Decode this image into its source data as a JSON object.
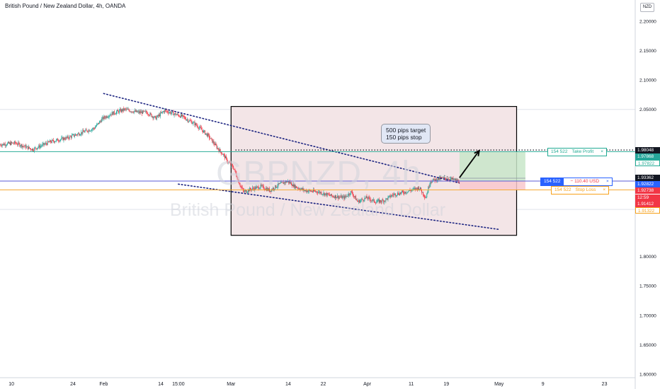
{
  "title": "British Pound / New Zealand Dollar, 4h, OANDA",
  "currency": "NZD",
  "watermark": {
    "symbol": "GBPNZD, 4h",
    "name": "British Pound / New Zealand Dollar"
  },
  "callout": {
    "line1": "500 pips target",
    "line2": "150 pips stop"
  },
  "position": {
    "take_profit": {
      "qty": "154 522",
      "label": "Take Profit",
      "close": "×",
      "price": 1.97822
    },
    "entry": {
      "qty": "154 522",
      "pnl": "− 110.40 USD",
      "close": "×",
      "price": 1.92822
    },
    "stop_loss": {
      "qty": "154 522",
      "label": "Stop Loss",
      "close": "×",
      "price": 1.91322
    }
  },
  "price_tags": [
    {
      "text": "1.98048",
      "value": 1.98048,
      "bg": "#131722",
      "fg": "#ffffff"
    },
    {
      "text": "1.97868",
      "value": 1.97868,
      "bg": "#26a69a",
      "fg": "#ffffff"
    },
    {
      "text": "1.97822",
      "value": 1.97822,
      "bg": "#ffffff",
      "fg": "#22ab94",
      "border": "#22ab94"
    },
    {
      "text": "1.93362",
      "value": 1.93362,
      "bg": "#131722",
      "fg": "#ffffff"
    },
    {
      "text": "1.92822",
      "value": 1.92822,
      "bg": "#2962ff",
      "fg": "#ffffff"
    },
    {
      "text": "1.92738",
      "value": 1.92738,
      "bg": "#f23645",
      "fg": "#ffffff"
    },
    {
      "text": "12:59",
      "value": 1.91975,
      "bg": "#f23645",
      "fg": "#ffffff"
    },
    {
      "text": "1.91412",
      "value": 1.91412,
      "bg": "#f23645",
      "fg": "#ffffff"
    },
    {
      "text": "1.91322",
      "value": 1.91322,
      "bg": "#ffffff",
      "fg": "#f7a21b",
      "border": "#f7a21b"
    }
  ],
  "colors": {
    "up": "#26a69a",
    "down": "#f23645",
    "trendline": "#1b2380",
    "box_fill": "#f3e5e7",
    "tp_zone": "#c8e6c9",
    "sl_zone": "#f8c8cc",
    "entry_line": "#5b5bd6"
  },
  "chart_data": {
    "type": "candlestick",
    "symbol": "GBPNZD",
    "timeframe": "4h",
    "y_axis": {
      "ticks": [
        2.2,
        2.15,
        2.1,
        2.05,
        1.8,
        1.75,
        1.7,
        1.65,
        1.6
      ],
      "tick_labels": [
        "2.20000",
        "2.15000",
        "2.10000",
        "2.05000",
        "1.80000",
        "1.75000",
        "1.70000",
        "1.65000",
        "1.60000"
      ],
      "ylim": [
        1.594,
        2.236
      ]
    },
    "x_axis": {
      "tick_labels": [
        "10",
        "24",
        "Feb",
        "14",
        "15:00",
        "Mar",
        "14",
        "22",
        "Apr",
        "11",
        "19",
        "May",
        "9",
        "23"
      ],
      "tick_days": [
        -21,
        -7,
        0,
        13,
        17,
        29,
        42,
        50,
        60,
        70,
        78,
        90,
        100,
        114
      ],
      "xlim": [
        -23.6,
        121
      ]
    },
    "grid_levels": [
      2.05,
      1.97822,
      1.91322,
      1.88
    ],
    "price_path": [
      {
        "day": -23.6,
        "price": 1.99
      },
      {
        "day": -20,
        "price": 1.993
      },
      {
        "day": -16,
        "price": 1.982
      },
      {
        "day": -12,
        "price": 1.995
      },
      {
        "day": -8,
        "price": 2.002
      },
      {
        "day": -4,
        "price": 2.013
      },
      {
        "day": -2,
        "price": 2.018
      },
      {
        "day": 0,
        "price": 2.035
      },
      {
        "day": 2,
        "price": 2.043
      },
      {
        "day": 5,
        "price": 2.05
      },
      {
        "day": 8,
        "price": 2.045
      },
      {
        "day": 10,
        "price": 2.045
      },
      {
        "day": 12,
        "price": 2.035
      },
      {
        "day": 14,
        "price": 2.048
      },
      {
        "day": 16,
        "price": 2.043
      },
      {
        "day": 18,
        "price": 2.038
      },
      {
        "day": 21,
        "price": 2.025
      },
      {
        "day": 24,
        "price": 2.005
      },
      {
        "day": 26,
        "price": 1.985
      },
      {
        "day": 27.5,
        "price": 1.972
      },
      {
        "day": 28.5,
        "price": 1.96
      },
      {
        "day": 29.8,
        "price": 1.95
      },
      {
        "day": 31,
        "price": 1.925
      },
      {
        "day": 32,
        "price": 1.91
      },
      {
        "day": 34,
        "price": 1.915
      },
      {
        "day": 36,
        "price": 1.919
      },
      {
        "day": 38,
        "price": 1.912
      },
      {
        "day": 40,
        "price": 1.922
      },
      {
        "day": 42,
        "price": 1.928
      },
      {
        "day": 44,
        "price": 1.918
      },
      {
        "day": 46,
        "price": 1.912
      },
      {
        "day": 49,
        "price": 1.91
      },
      {
        "day": 52,
        "price": 1.903
      },
      {
        "day": 55,
        "price": 1.9
      },
      {
        "day": 56.5,
        "price": 1.91
      },
      {
        "day": 58,
        "price": 1.893
      },
      {
        "day": 60,
        "price": 1.9
      },
      {
        "day": 62,
        "price": 1.893
      },
      {
        "day": 64,
        "price": 1.895
      },
      {
        "day": 66,
        "price": 1.905
      },
      {
        "day": 69,
        "price": 1.91
      },
      {
        "day": 72,
        "price": 1.917
      },
      {
        "day": 73.5,
        "price": 1.9
      },
      {
        "day": 74.5,
        "price": 1.928
      },
      {
        "day": 77,
        "price": 1.933
      },
      {
        "day": 79,
        "price": 1.932
      },
      {
        "day": 81,
        "price": 1.928
      }
    ],
    "trendlines": [
      {
        "name": "upper",
        "from": {
          "day": 0,
          "price": 2.077
        },
        "to": {
          "day": 81,
          "price": 1.925
        }
      },
      {
        "name": "lower",
        "from": {
          "day": 17,
          "price": 1.923
        },
        "to": {
          "day": 90,
          "price": 1.846
        }
      }
    ],
    "analysis_box": {
      "day_from": 29,
      "day_to": 94,
      "price_from": 1.836,
      "price_to": 2.055
    },
    "dotted_target": {
      "day_from": 30,
      "day_to": 121,
      "price": 1.981
    },
    "long_position": {
      "day_from": 81,
      "day_to": 96,
      "entry": 1.92822,
      "take_profit": 1.97822,
      "stop_loss": 1.91322
    },
    "projection_arrow": {
      "from": {
        "day": 81,
        "price": 1.934
      },
      "to": {
        "day": 85.5,
        "price": 1.98
      }
    },
    "notes": [
      "500 pips target",
      "150 pips stop"
    ]
  }
}
